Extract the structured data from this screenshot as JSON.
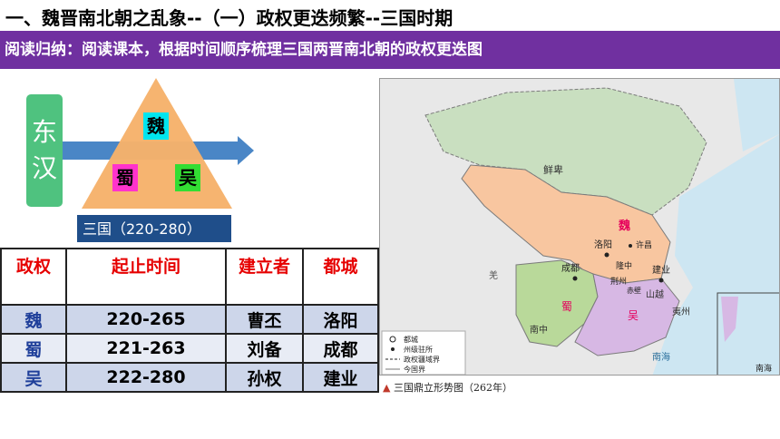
{
  "header": {
    "title": "一、魏晋南北朝之乱象--（一）政权更迭频繁--三国时期",
    "banner": "阅读归纳：阅读课本，根据时间顺序梳理三国两晋南北朝的政权更迭图"
  },
  "diagram": {
    "donghan": "东汉",
    "wei": "魏",
    "shu": "蜀",
    "wu": "吴",
    "sanguo": "三国（220-280）",
    "colors": {
      "triangle": "#f6b26b",
      "arrow": "#4a86c6",
      "donghan_box": "#4fc27f",
      "wei": "#00e5ee",
      "shu": "#ff33cc",
      "wu": "#33dd33",
      "sanguo_box": "#1f4e8a"
    }
  },
  "table": {
    "headers": [
      "政权",
      "起止时间",
      "建立者",
      "都城"
    ],
    "rows": [
      [
        "魏",
        "220-265",
        "曹丕",
        "洛阳"
      ],
      [
        "蜀",
        "221-263",
        "刘备",
        "成都"
      ],
      [
        "吴",
        "222-280",
        "孙权",
        "建业"
      ]
    ]
  },
  "map": {
    "caption_marker": "▲",
    "caption": "三国鼎立形势图（262年）",
    "regions": {
      "xianbei": "鲜卑",
      "wei": "魏",
      "shu": "蜀",
      "wu": "吴",
      "shanyue": "山越",
      "yizhou": "夷州",
      "nanzhong": "南中",
      "qiang": "羌",
      "nanhai_sea": "南海",
      "nanhai_inset": "南海"
    },
    "cities": {
      "luoyang": "洛阳",
      "xuchang": "许昌",
      "chengdu": "成都",
      "jianye": "建业",
      "longzhong": "隆中",
      "chibi": "赤壁",
      "jingzhou": "荆州"
    },
    "legend": [
      "都城",
      "州级驻所",
      "政权疆域界",
      "今国界"
    ],
    "colors": {
      "xianbei": "#c9dfc0",
      "wei": "#f8c6a0",
      "shu": "#b9d99a",
      "wu": "#d7b8e4",
      "sea": "#cde6f2",
      "outer": "#e8e8e8"
    }
  }
}
